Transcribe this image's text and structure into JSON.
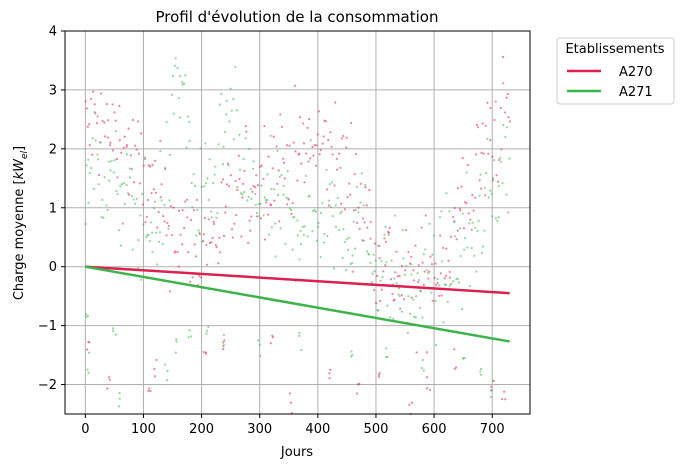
{
  "chart_data": {
    "type": "scatter",
    "title": "Profil d'évolution de la consommation",
    "xlabel": "Jours",
    "ylabel_prefix": "Charge moyenne [",
    "ylabel_unit_main": "kW",
    "ylabel_unit_sub": "el",
    "ylabel_suffix": "]",
    "xlim": [
      -35,
      765
    ],
    "ylim": [
      -2.5,
      4
    ],
    "xticks": [
      0,
      100,
      200,
      300,
      400,
      500,
      600,
      700
    ],
    "yticks": [
      -2,
      -1,
      0,
      1,
      2,
      3,
      4
    ],
    "xtick_labels": [
      "0",
      "100",
      "200",
      "300",
      "400",
      "500",
      "600",
      "700"
    ],
    "ytick_labels": [
      "−2",
      "−1",
      "0",
      "1",
      "2",
      "3",
      "4"
    ],
    "grid": true,
    "legend": {
      "title": "Etablissements",
      "position": "outside-top-right"
    },
    "series": [
      {
        "name": "A270",
        "color": "#dc2050",
        "trend": {
          "x": [
            0,
            730
          ],
          "y": [
            0,
            -0.45
          ]
        },
        "profile": [
          [
            0,
            2.3
          ],
          [
            20,
            2.4
          ],
          [
            45,
            2.2
          ],
          [
            70,
            2.0
          ],
          [
            95,
            1.6
          ],
          [
            120,
            1.1
          ],
          [
            150,
            0.7
          ],
          [
            175,
            0.5
          ],
          [
            200,
            0.4
          ],
          [
            225,
            0.55
          ],
          [
            250,
            0.9
          ],
          [
            275,
            1.2
          ],
          [
            300,
            1.5
          ],
          [
            325,
            1.7
          ],
          [
            350,
            1.8
          ],
          [
            375,
            1.9
          ],
          [
            400,
            2.0
          ],
          [
            425,
            1.9
          ],
          [
            450,
            1.6
          ],
          [
            475,
            1.0
          ],
          [
            500,
            0.4
          ],
          [
            525,
            0.0
          ],
          [
            550,
            -0.4
          ],
          [
            575,
            -0.3
          ],
          [
            600,
            0.0
          ],
          [
            625,
            0.3
          ],
          [
            650,
            1.0
          ],
          [
            675,
            1.6
          ],
          [
            700,
            2.2
          ],
          [
            730,
            2.7
          ]
        ],
        "outliers": [
          [
            5,
            -1.3
          ],
          [
            40,
            -2.0
          ],
          [
            110,
            -2.1
          ],
          [
            120,
            -1.7
          ],
          [
            205,
            -1.6
          ],
          [
            240,
            -1.4
          ],
          [
            320,
            -1.3
          ],
          [
            355,
            -2.3
          ],
          [
            420,
            -1.7
          ],
          [
            470,
            -2.0
          ],
          [
            505,
            -1.8
          ],
          [
            560,
            -2.4
          ],
          [
            590,
            -2.0
          ],
          [
            635,
            -1.6
          ],
          [
            700,
            -2.0
          ],
          [
            720,
            -2.3
          ]
        ]
      },
      {
        "name": "A271",
        "color": "#3cb44b",
        "trend": {
          "x": [
            0,
            730
          ],
          "y": [
            0,
            -1.27
          ]
        },
        "profile": [
          [
            0,
            1.8
          ],
          [
            20,
            1.7
          ],
          [
            45,
            1.4
          ],
          [
            70,
            1.1
          ],
          [
            95,
            0.8
          ],
          [
            120,
            0.6
          ],
          [
            145,
            1.6
          ],
          [
            155,
            3.5
          ],
          [
            170,
            2.8
          ],
          [
            190,
            1.0
          ],
          [
            210,
            0.9
          ],
          [
            230,
            1.7
          ],
          [
            250,
            2.6
          ],
          [
            270,
            1.5
          ],
          [
            300,
            1.1
          ],
          [
            330,
            0.9
          ],
          [
            360,
            0.8
          ],
          [
            390,
            0.9
          ],
          [
            420,
            1.0
          ],
          [
            450,
            0.7
          ],
          [
            480,
            0.6
          ],
          [
            510,
            0.0
          ],
          [
            540,
            -0.3
          ],
          [
            570,
            -0.5
          ],
          [
            600,
            -0.2
          ],
          [
            630,
            0.1
          ],
          [
            660,
            0.4
          ],
          [
            690,
            1.0
          ],
          [
            710,
            1.6
          ],
          [
            730,
            1.9
          ]
        ],
        "outliers": [
          [
            2,
            -0.9
          ],
          [
            5,
            -1.6
          ],
          [
            50,
            -1.1
          ],
          [
            60,
            -2.3
          ],
          [
            140,
            -1.8
          ],
          [
            155,
            -1.3
          ],
          [
            180,
            -1.2
          ],
          [
            210,
            -1.1
          ],
          [
            240,
            -1.3
          ],
          [
            300,
            -1.4
          ],
          [
            370,
            -1.3
          ],
          [
            460,
            -1.4
          ],
          [
            520,
            -1.5
          ],
          [
            580,
            -1.6
          ],
          [
            650,
            -1.4
          ],
          [
            680,
            -1.9
          ],
          [
            700,
            -2.1
          ]
        ]
      }
    ]
  }
}
